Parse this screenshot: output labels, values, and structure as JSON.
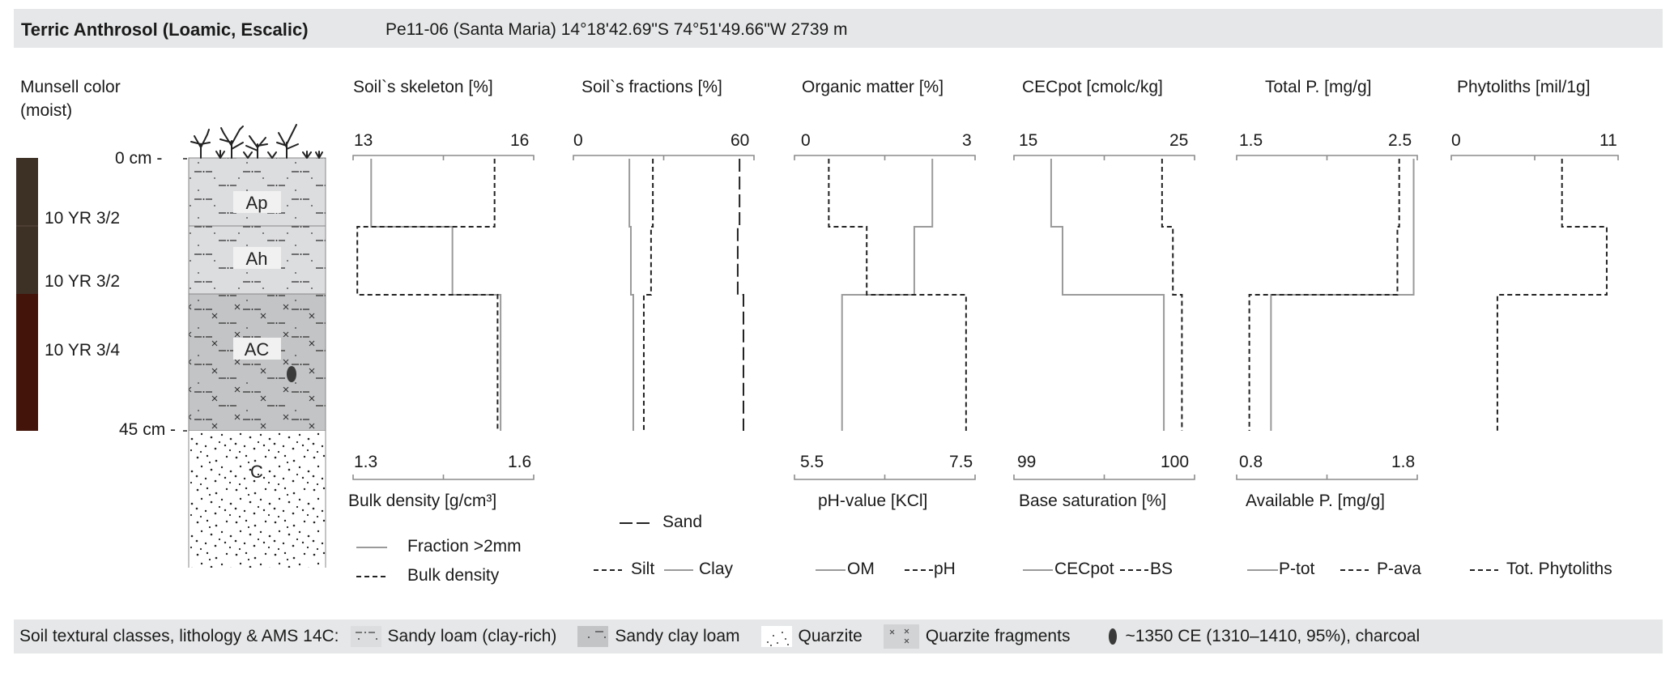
{
  "header": {
    "title": "Terric Anthrosol (Loamic, Escalic)",
    "site": "Pe11-06 (Santa Maria) 14°18'42.69\"S 74°51'49.66\"W 2739 m"
  },
  "profile": {
    "munsell_title_1": "Munsell color",
    "munsell_title_2": "(moist)",
    "depth_top": "0 cm -",
    "depth_bottom": "45 cm -",
    "horizons": [
      {
        "name": "Ap",
        "munsell": "10 YR 3/2",
        "color": "#3d3025",
        "from_cm": 0,
        "to_cm": 11
      },
      {
        "name": "Ah",
        "munsell": "10 YR 3/2",
        "color": "#3d3025",
        "from_cm": 11,
        "to_cm": 22
      },
      {
        "name": "AC",
        "munsell": "10 YR 3/4",
        "color": "#431409",
        "from_cm": 22,
        "to_cm": 45
      },
      {
        "name": "C",
        "munsell": "",
        "color": "#ffffff",
        "from_cm": 45,
        "to_cm": 67
      }
    ]
  },
  "chart_data": [
    {
      "type": "line",
      "title": "Soil`s skeleton [%]",
      "xlabel_bottom": "Bulk density [g/cm³]",
      "top_axis": {
        "ticks": [
          "13",
          "16"
        ],
        "range": [
          13,
          16
        ]
      },
      "bottom_axis": {
        "ticks": [
          "1.3",
          "1.6"
        ],
        "range": [
          1.3,
          1.6
        ]
      },
      "series": [
        {
          "name": "Fraction >2mm",
          "axis": "top",
          "style": "solid",
          "values": [
            13.3,
            14.65,
            15.45
          ]
        },
        {
          "name": "Bulk density",
          "axis": "bottom",
          "style": "dashed",
          "values": [
            1.535,
            1.307,
            1.54
          ]
        }
      ],
      "legend": [
        {
          "label": "Fraction >2mm",
          "style": "solid"
        },
        {
          "label": "Bulk density",
          "style": "dashed"
        }
      ]
    },
    {
      "type": "line",
      "title": "Soil`s fractions [%]",
      "top_axis": {
        "ticks": [
          "0",
          "60"
        ],
        "range": [
          0,
          60
        ]
      },
      "series": [
        {
          "name": "Clay",
          "axis": "top",
          "style": "solid",
          "values": [
            18.6,
            19.1,
            19.9
          ]
        },
        {
          "name": "Silt",
          "axis": "top",
          "style": "dashed",
          "values": [
            26.4,
            25.8,
            23.4
          ]
        },
        {
          "name": "Sand",
          "axis": "top",
          "style": "longdash",
          "values": [
            55.2,
            54.6,
            56.5
          ]
        }
      ],
      "legend": [
        {
          "label": "Sand",
          "style": "longdash"
        },
        {
          "label": "Silt",
          "style": "dashed"
        },
        {
          "label": "Clay",
          "style": "solid"
        }
      ]
    },
    {
      "type": "line",
      "title": "Organic matter [%]",
      "xlabel_bottom": "pH-value [KCl]",
      "top_axis": {
        "ticks": [
          "0",
          "3"
        ],
        "range": [
          0,
          3
        ]
      },
      "bottom_axis": {
        "ticks": [
          "5.5",
          "7.5"
        ],
        "range": [
          5.5,
          7.5
        ]
      },
      "series": [
        {
          "name": "OM",
          "axis": "top",
          "style": "solid",
          "values": [
            2.29,
            1.99,
            0.79
          ]
        },
        {
          "name": "pH",
          "axis": "bottom",
          "style": "dashed",
          "values": [
            5.88,
            6.3,
            7.4
          ]
        }
      ],
      "legend": [
        {
          "label": "OM",
          "style": "solid"
        },
        {
          "label": "pH",
          "style": "dashed"
        }
      ]
    },
    {
      "type": "line",
      "title": "CECpot [cmolc/kg]",
      "xlabel_bottom": "Base saturation [%]",
      "top_axis": {
        "ticks": [
          "15",
          "25"
        ],
        "range": [
          15,
          25
        ]
      },
      "bottom_axis": {
        "ticks": [
          "99",
          "100"
        ],
        "range": [
          99,
          100
        ]
      },
      "series": [
        {
          "name": "CECpot",
          "axis": "top",
          "style": "solid",
          "values": [
            17.06,
            17.69,
            23.3
          ]
        },
        {
          "name": "BS",
          "axis": "bottom",
          "style": "dashed",
          "values": [
            99.82,
            99.88,
            99.93
          ]
        }
      ],
      "legend": [
        {
          "label": "CECpot",
          "style": "solid"
        },
        {
          "label": "BS",
          "style": "dashed"
        }
      ]
    },
    {
      "type": "line",
      "title": "Total P. [mg/g]",
      "xlabel_bottom": "Available P. [mg/g]",
      "top_axis": {
        "ticks": [
          "1.5",
          "2.5"
        ],
        "range": [
          1.5,
          2.5
        ]
      },
      "bottom_axis": {
        "ticks": [
          "0.8",
          "1.8"
        ],
        "range": [
          0.8,
          1.8
        ]
      },
      "series": [
        {
          "name": "P-tot",
          "axis": "top",
          "style": "solid",
          "values": [
            2.48,
            2.48,
            1.69
          ]
        },
        {
          "name": "P-ava",
          "axis": "bottom",
          "style": "dashed",
          "values": [
            1.7,
            1.69,
            0.87
          ]
        }
      ],
      "legend": [
        {
          "label": "P-tot",
          "style": "solid"
        },
        {
          "label": "P-ava",
          "style": "dashed"
        }
      ]
    },
    {
      "type": "line",
      "title": "Phytoliths [mil/1g]",
      "top_axis": {
        "ticks": [
          "0",
          "11"
        ],
        "range": [
          0,
          11
        ]
      },
      "series": [
        {
          "name": "Tot. Phytoliths",
          "axis": "top",
          "style": "dashed",
          "values": [
            7.3,
            10.25,
            3.04
          ]
        }
      ],
      "legend": [
        {
          "label": "Tot. Phytoliths",
          "style": "dashed"
        }
      ]
    }
  ],
  "legend_text": {
    "fraction": "Fraction >2mm",
    "bulk": "Bulk density",
    "sand": "Sand",
    "silt": "Silt",
    "clay": "Clay",
    "om": "OM",
    "ph": "pH",
    "cec": "CECpot",
    "bs": "BS",
    "ptot": "P-tot",
    "pava": "P-ava",
    "phyto": "Tot. Phytoliths"
  },
  "footer": {
    "title": "Soil textural classes, lithology & AMS 14C:",
    "items": [
      {
        "label": "Sandy loam (clay-rich)",
        "swatch": "#dcdddf"
      },
      {
        "label": "Sandy clay loam",
        "swatch": "#c3c4c6"
      },
      {
        "label": "Quarzite",
        "swatch": "#ffffff"
      },
      {
        "label": "Quarzite fragments",
        "swatch": "#d2d3d5"
      },
      {
        "label": "~1350 CE (1310–1410, 95%), charcoal",
        "swatch": "#3a3a3a"
      }
    ]
  },
  "colors": {
    "band": "#e6e7e8",
    "solid_line": "#9a9a9a",
    "dashed_line": "#222222",
    "axis": "#8c8c8c"
  }
}
